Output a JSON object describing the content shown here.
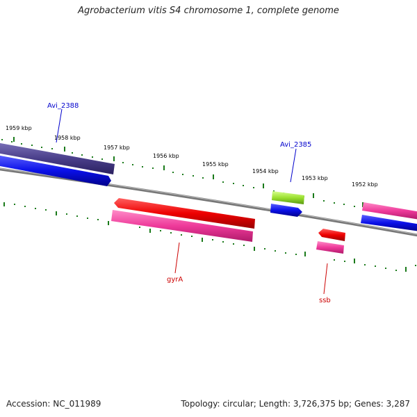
{
  "header": {
    "title": "Agrobacterium vitis S4 chromosome 1, complete genome"
  },
  "footer": {
    "accession": "Accession: NC_011989",
    "summary": "Topology: circular; Length: 3,726,375 bp; Genes: 3,287"
  },
  "ticks": [
    "1959 kbp",
    "1958 kbp",
    "1957 kbp",
    "1956 kbp",
    "1955 kbp",
    "1954 kbp",
    "1953 kbp",
    "1952 kbp"
  ],
  "labels": {
    "avi2388": "Avi_2388",
    "avi2385": "Avi_2385",
    "gyrA": "gyrA",
    "ssb": "ssb"
  },
  "colors": {
    "backbone": "#888888",
    "tick_green": "#1a7a1a",
    "blue_label": "#0000cc",
    "red_label": "#cc0000",
    "cds_blue": "#0a10e8",
    "cds_purple": "#4a3f8a",
    "cds_red": "#ee0000",
    "cds_pink": "#ee3a9a",
    "cds_lime": "#9be030"
  }
}
